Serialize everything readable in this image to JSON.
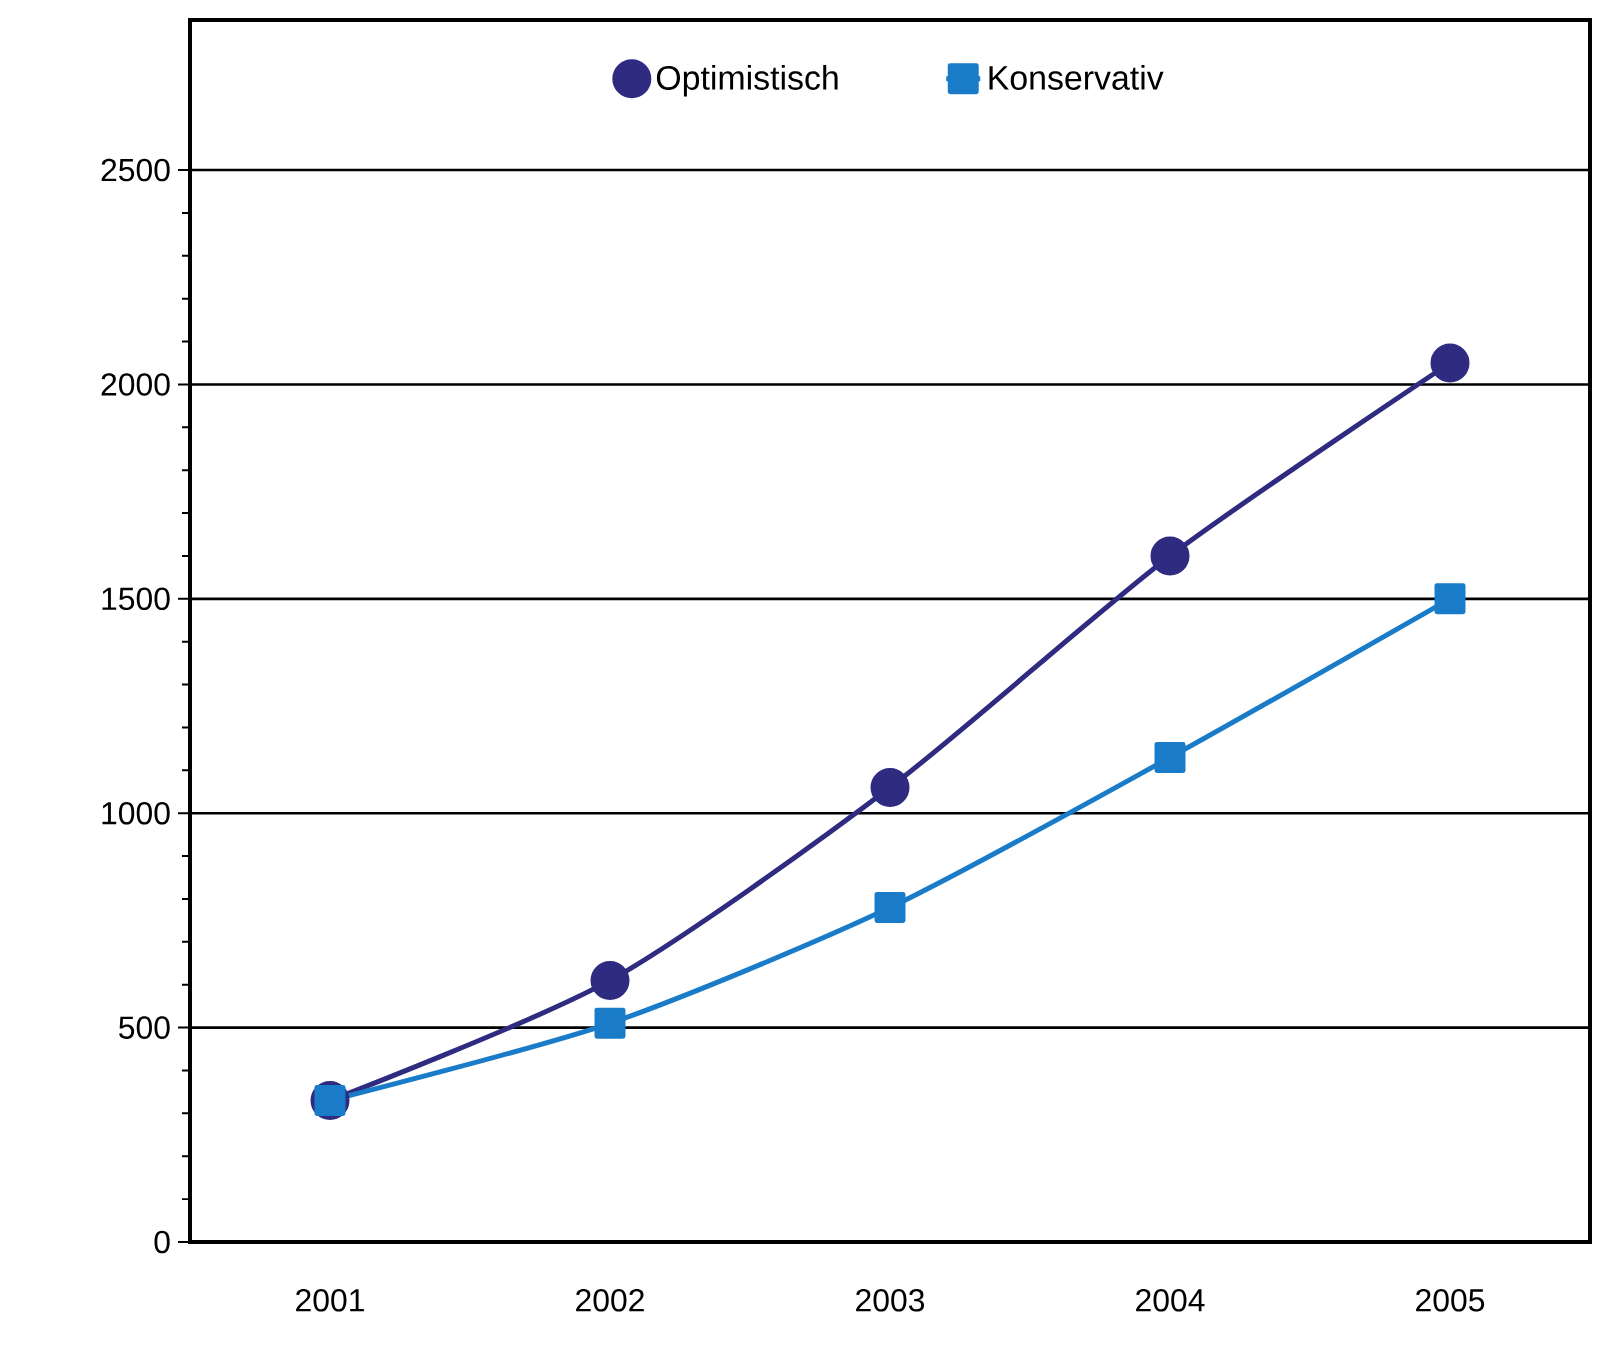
{
  "chart_data": {
    "type": "line",
    "categories": [
      "2001",
      "2002",
      "2003",
      "2004",
      "2005"
    ],
    "series": [
      {
        "name": "Optimistisch",
        "color": "#2e2b80",
        "marker": "circle",
        "values": [
          330,
          610,
          1060,
          1600,
          2050
        ]
      },
      {
        "name": "Konservativ",
        "color": "#1a7cc8",
        "marker": "square",
        "values": [
          330,
          510,
          780,
          1130,
          1500
        ]
      }
    ],
    "ylim": [
      0,
      2850
    ],
    "yticks": [
      0,
      500,
      1000,
      1500,
      2000,
      2500
    ],
    "grid": "y",
    "legend": "top",
    "line_style": "solid"
  }
}
